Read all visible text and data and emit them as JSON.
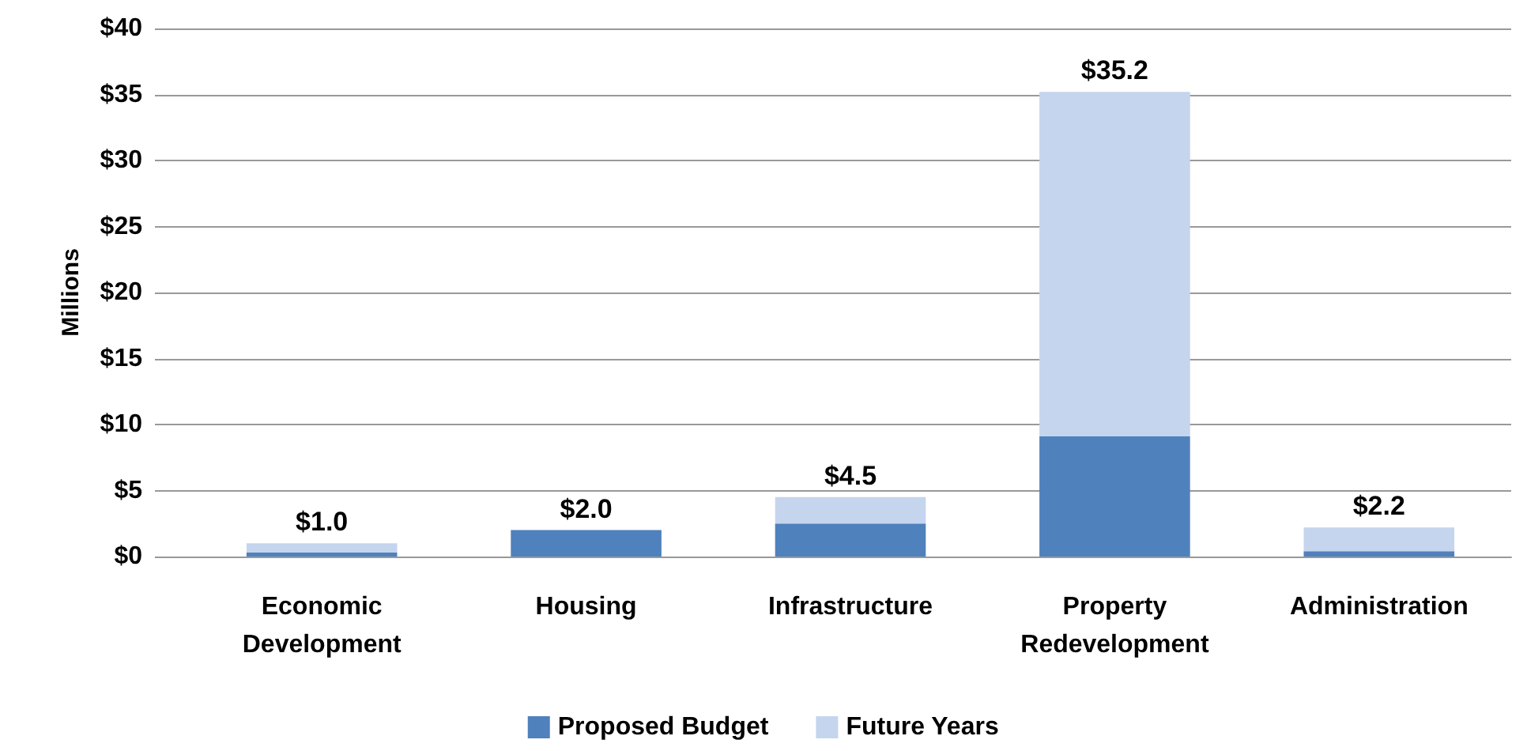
{
  "chart_data": {
    "type": "bar",
    "ylabel": "Millions",
    "categories": [
      "Economic\nDevelopment",
      "Housing",
      "Infrastructure",
      "Property\nRedevelopment",
      "Administration"
    ],
    "series": [
      {
        "name": "Proposed Budget",
        "color": "#4f81bd",
        "values": [
          0.3,
          2.0,
          2.5,
          9.1,
          0.4
        ]
      },
      {
        "name": "Future Years",
        "color": "#c5d5ee",
        "values": [
          0.7,
          0,
          2.0,
          26.1,
          1.8
        ]
      }
    ],
    "stacked": true,
    "totals": [
      "$1.0",
      "$2.0",
      "$4.5",
      "$35.2",
      "$2.2"
    ],
    "ylim": [
      0,
      40
    ],
    "yticks": [
      {
        "value": 0,
        "label": "$0"
      },
      {
        "value": 5,
        "label": "$5"
      },
      {
        "value": 10,
        "label": "$10"
      },
      {
        "value": 15,
        "label": "$15"
      },
      {
        "value": 20,
        "label": "$20"
      },
      {
        "value": 25,
        "label": "$25"
      },
      {
        "value": 30,
        "label": "$30"
      },
      {
        "value": 35,
        "label": "$35"
      },
      {
        "value": 40,
        "label": "$40"
      }
    ],
    "grid": "y",
    "legend": "bottom"
  }
}
